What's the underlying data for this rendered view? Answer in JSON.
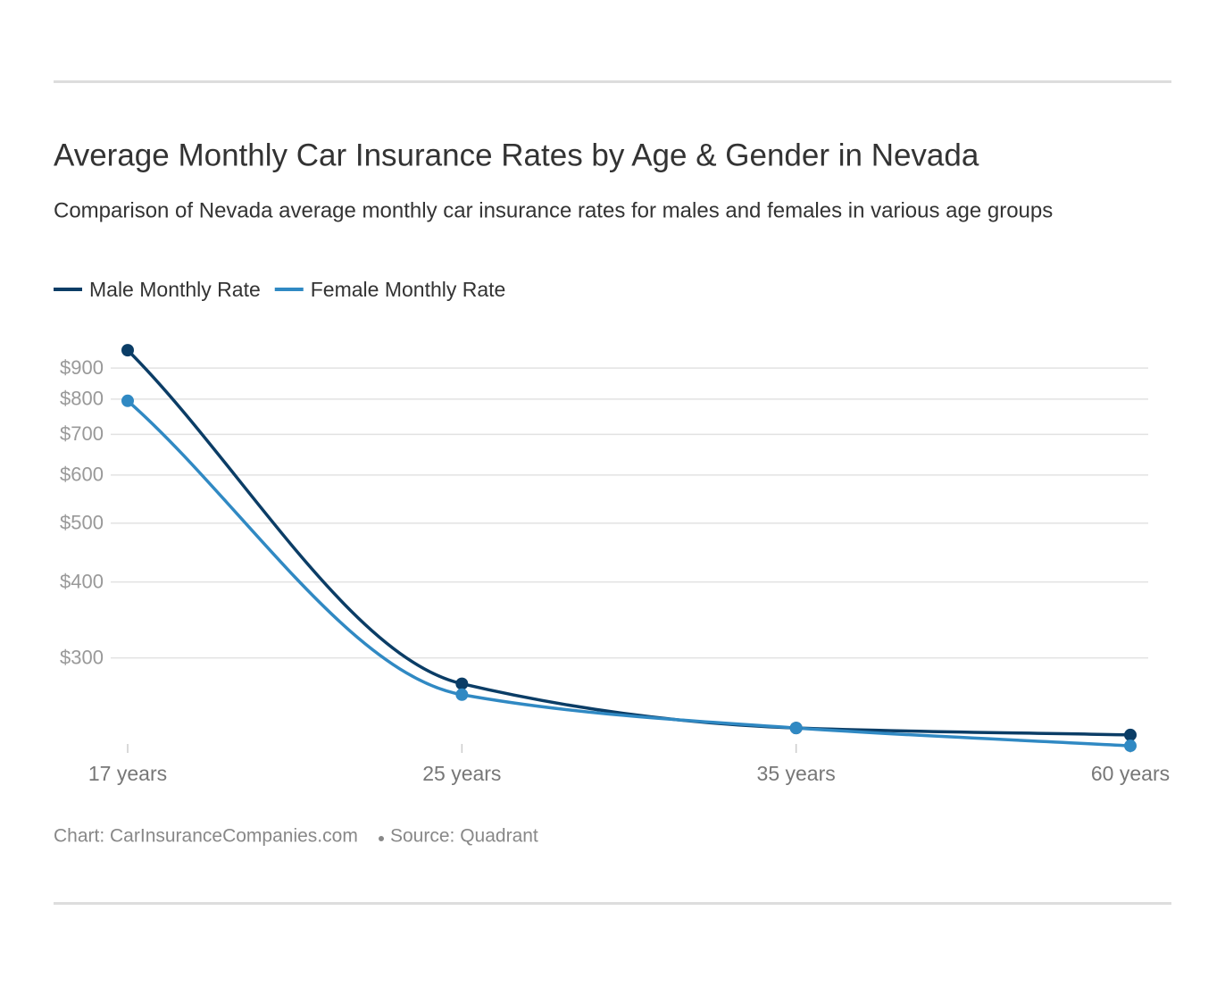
{
  "chart_data": {
    "type": "line",
    "title": "Average Monthly Car Insurance Rates by Age & Gender in Nevada",
    "subtitle": "Comparison of Nevada average monthly car insurance rates for males and females in various age groups",
    "categories": [
      "17 years",
      "25 years",
      "35 years",
      "60 years"
    ],
    "series": [
      {
        "name": "Male Monthly Rate",
        "color": "#0b3d66",
        "values": [
          963,
          272,
          230,
          224
        ]
      },
      {
        "name": "Female Monthly Rate",
        "color": "#3089c3",
        "values": [
          795,
          261,
          230,
          215
        ]
      }
    ],
    "log_scale": true,
    "ylim": [
      210,
      1000
    ],
    "yticks": [
      {
        "value": 300,
        "label": "$300"
      },
      {
        "value": 400,
        "label": "$400"
      },
      {
        "value": 500,
        "label": "$500"
      },
      {
        "value": 600,
        "label": "$600"
      },
      {
        "value": 700,
        "label": "$700"
      },
      {
        "value": 800,
        "label": "$800"
      },
      {
        "value": 900,
        "label": "$900"
      }
    ],
    "grid": true,
    "legend": "top-left",
    "credit": "Chart: CarInsuranceCompanies.com",
    "source": "Source: Quadrant"
  }
}
